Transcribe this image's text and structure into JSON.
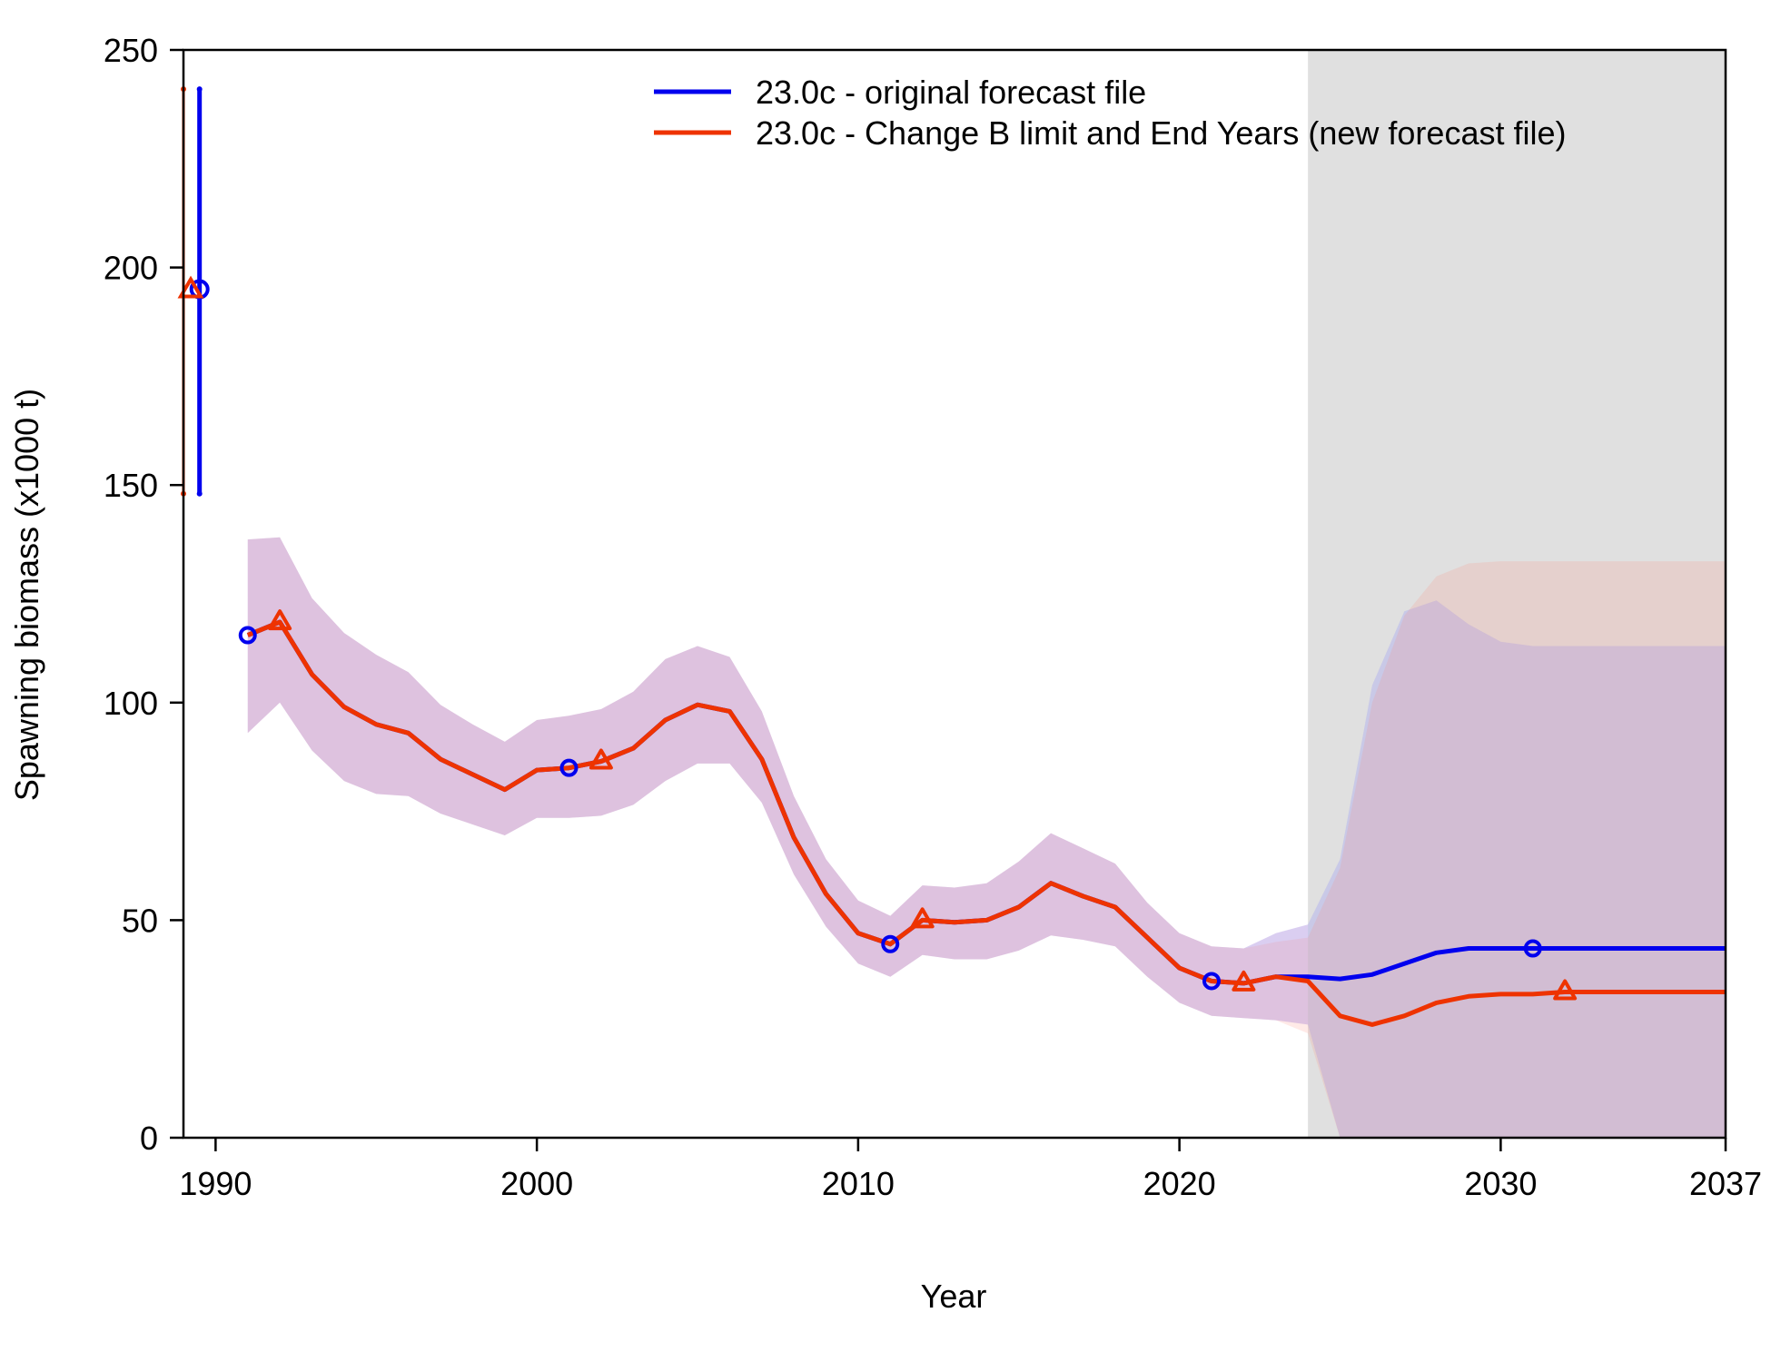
{
  "chart_data": {
    "type": "line",
    "xlabel": "Year",
    "ylabel": "Spawning biomass (x1000 t)",
    "xlim": [
      1989.0,
      2037.0
    ],
    "ylim": [
      0,
      250
    ],
    "x_ticks": [
      "1990",
      "2000",
      "2010",
      "2020",
      "2030",
      "2037"
    ],
    "x_tick_values": [
      1990,
      2000,
      2010,
      2020,
      2030,
      2037
    ],
    "y_ticks": [
      "0",
      "50",
      "100",
      "150",
      "200",
      "250"
    ],
    "y_tick_values": [
      0,
      50,
      100,
      150,
      200,
      250
    ],
    "forecast_shading": {
      "from": 2024.0,
      "to": 2037.0,
      "color": "#e0e0e0"
    },
    "legend_position": "top-right",
    "grid": false,
    "series": [
      {
        "name": "23.0c - original forecast file",
        "color": "#0000ee",
        "marker": "circle",
        "virgin": {
          "x": 1989.5,
          "y": 195,
          "lo": 148,
          "hi": 241
        },
        "x": [
          1991,
          1992,
          1993,
          1994,
          1995,
          1996,
          1997,
          1998,
          1999,
          2000,
          2001,
          2002,
          2003,
          2004,
          2005,
          2006,
          2007,
          2008,
          2009,
          2010,
          2011,
          2012,
          2013,
          2014,
          2015,
          2016,
          2017,
          2018,
          2019,
          2020,
          2021,
          2022,
          2023,
          2024,
          2025,
          2026,
          2027,
          2028,
          2029,
          2030,
          2031,
          2032,
          2033,
          2034,
          2035,
          2036,
          2037
        ],
        "y": [
          115.5,
          118.5,
          106.5,
          99,
          95,
          93,
          87,
          83.5,
          80,
          84.5,
          85,
          86.5,
          89.5,
          96,
          99.5,
          98,
          87,
          69,
          56,
          47,
          44.5,
          50,
          49.5,
          50,
          53,
          58.5,
          55.5,
          53,
          46,
          39,
          36,
          35.5,
          37,
          37,
          36.5,
          37.5,
          40,
          42.5,
          43.5,
          43.5,
          43.5,
          43.5,
          43.5,
          43.5,
          43.5,
          43.5,
          43.5
        ],
        "lo": [
          93,
          100,
          89,
          82,
          79,
          78.5,
          74.5,
          72,
          69.5,
          73.5,
          73.5,
          74,
          76.5,
          82,
          86,
          86,
          77,
          60.5,
          48.5,
          40,
          37,
          42,
          41,
          41,
          43,
          46.5,
          45.5,
          44,
          37,
          31,
          28,
          27.5,
          27,
          26,
          0,
          0,
          0,
          0,
          0,
          0,
          0,
          0,
          0,
          0,
          0,
          0,
          0
        ],
        "hi": [
          137.5,
          138,
          124,
          116,
          111,
          107,
          99.5,
          95,
          91,
          96,
          97,
          98.5,
          102.5,
          110,
          113,
          110.5,
          98,
          78.5,
          64,
          54.5,
          51,
          58,
          57.5,
          58.5,
          63.5,
          70,
          66.5,
          63,
          54,
          47,
          44,
          43.5,
          47,
          49,
          64,
          104,
          121,
          123.5,
          118,
          114,
          113,
          113,
          113,
          113,
          113,
          113,
          113
        ]
      },
      {
        "name": "23.0c - Change B limit and End Years (new forecast file)",
        "color": "#ee3300",
        "marker": "triangle",
        "virgin": {
          "x": 1989.0,
          "y": 195,
          "lo": 148,
          "hi": 241
        },
        "x": [
          1991,
          1992,
          1993,
          1994,
          1995,
          1996,
          1997,
          1998,
          1999,
          2000,
          2001,
          2002,
          2003,
          2004,
          2005,
          2006,
          2007,
          2008,
          2009,
          2010,
          2011,
          2012,
          2013,
          2014,
          2015,
          2016,
          2017,
          2018,
          2019,
          2020,
          2021,
          2022,
          2023,
          2024,
          2025,
          2026,
          2027,
          2028,
          2029,
          2030,
          2031,
          2032,
          2033,
          2034,
          2035,
          2036,
          2037
        ],
        "y": [
          115.5,
          118.5,
          106.5,
          99,
          95,
          93,
          87,
          83.5,
          80,
          84.5,
          85,
          86.5,
          89.5,
          96,
          99.5,
          98,
          87,
          69,
          56,
          47,
          44.5,
          50,
          49.5,
          50,
          53,
          58.5,
          55.5,
          53,
          46,
          39,
          36,
          35.5,
          37,
          36,
          28,
          26,
          28,
          31,
          32.5,
          33,
          33,
          33.5,
          33.5,
          33.5,
          33.5,
          33.5,
          33.5
        ],
        "lo": [
          93,
          100,
          89,
          82,
          79,
          78.5,
          74.5,
          72,
          69.5,
          73.5,
          73.5,
          74,
          76.5,
          82,
          86,
          86,
          77,
          60.5,
          48.5,
          40,
          37,
          42,
          41,
          41,
          43,
          46.5,
          45.5,
          44,
          37,
          31,
          28,
          27.5,
          27,
          24,
          0,
          0,
          0,
          0,
          0,
          0,
          0,
          0,
          0,
          0,
          0,
          0,
          0
        ],
        "hi": [
          137.5,
          138,
          124,
          116,
          111,
          107,
          99.5,
          95,
          91,
          96,
          97,
          98.5,
          102.5,
          110,
          113,
          110.5,
          98,
          78.5,
          64,
          54.5,
          51,
          58,
          57.5,
          58.5,
          63.5,
          70,
          66.5,
          63,
          54,
          47,
          44,
          43.5,
          45,
          46,
          62,
          100,
          120,
          129,
          132,
          132.5,
          132.5,
          132.5,
          132.5,
          132.5,
          132.5,
          132.5,
          132.5
        ]
      }
    ],
    "marker_points": [
      {
        "series": 0,
        "x": 1991,
        "y": 115.5
      },
      {
        "series": 0,
        "x": 2001,
        "y": 85
      },
      {
        "series": 0,
        "x": 2011,
        "y": 44.5
      },
      {
        "series": 0,
        "x": 2021,
        "y": 36
      },
      {
        "series": 0,
        "x": 2031,
        "y": 43.5
      },
      {
        "series": 1,
        "x": 1992,
        "y": 118.5
      },
      {
        "series": 1,
        "x": 2002,
        "y": 86.5
      },
      {
        "series": 1,
        "x": 2012,
        "y": 50
      },
      {
        "series": 1,
        "x": 2022,
        "y": 35.5
      },
      {
        "series": 1,
        "x": 2032,
        "y": 33.5
      }
    ]
  }
}
